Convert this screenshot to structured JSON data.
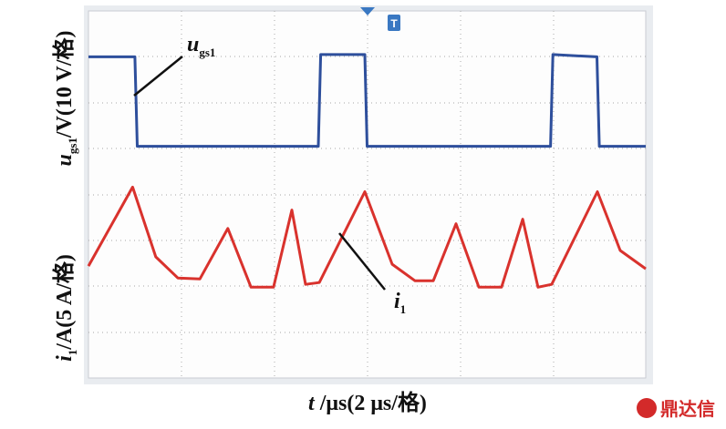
{
  "chart_data": {
    "type": "line",
    "xlabel": {
      "var": "t",
      "rest": " /μs(2 μs/格)"
    },
    "ylabel": {
      "var": "u",
      "sub": "gs1",
      "rest": "/V(10 V/格)"
    },
    "y2label": {
      "var": "i",
      "sub": "1",
      "rest": "/A(5 A/格)"
    },
    "annotations": [
      {
        "var": "u",
        "sub": "gs1"
      },
      {
        "var": "i",
        "sub": "1"
      }
    ],
    "watermark": "鼎达信",
    "xlim": [
      0,
      24
    ],
    "ylim": [
      -50,
      30
    ],
    "y2lim": [
      -10,
      30
    ],
    "series": [
      {
        "color": "#2e4f9c",
        "x": [
          0,
          2.0,
          2.1,
          9.9,
          10.0,
          11.9,
          12.0,
          19.9,
          20.0,
          21.9,
          22.0,
          24
        ],
        "values": [
          20,
          20,
          0.5,
          0.5,
          20.5,
          20.5,
          0.5,
          0.5,
          20.5,
          20,
          0.5,
          0.5
        ]
      },
      {
        "color": "#d9322d",
        "axis": "y2",
        "x": [
          0,
          1.9,
          2.9,
          3.85,
          4.8,
          6.0,
          7.0,
          7.97,
          8.76,
          9.35,
          9.94,
          11.9,
          13.08,
          14.06,
          14.85,
          15.83,
          16.81,
          17.79,
          18.7,
          19.36,
          19.95,
          21.92,
          22.9,
          24
        ],
        "values": [
          2.2,
          10.8,
          3.2,
          0.9,
          0.8,
          6.3,
          -0.1,
          -0.1,
          8.3,
          0.2,
          0.4,
          10.3,
          2.4,
          0.6,
          0.6,
          6.8,
          -0.1,
          -0.1,
          7.3,
          -0.1,
          0.2,
          10.3,
          3.9,
          1.9
        ]
      }
    ]
  }
}
